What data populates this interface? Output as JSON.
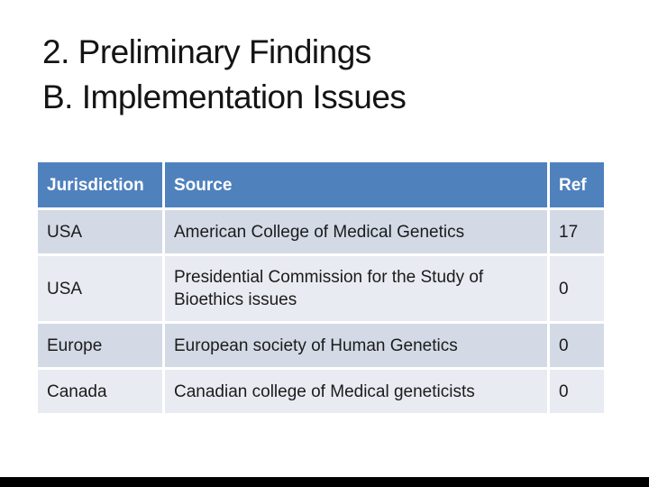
{
  "slide": {
    "title_line1": "2. Preliminary Findings",
    "title_line2": "B. Implementation Issues"
  },
  "table": {
    "headers": [
      "Jurisdiction",
      "Source",
      "Ref"
    ],
    "rows": [
      {
        "jurisdiction": "USA",
        "source": "American College of Medical Genetics",
        "ref": "17"
      },
      {
        "jurisdiction": "USA",
        "source": "Presidential Commission for the Study of Bioethics issues",
        "ref": "0"
      },
      {
        "jurisdiction": "Europe",
        "source": "European society of Human Genetics",
        "ref": "0"
      },
      {
        "jurisdiction": "Canada",
        "source": "Canadian college of Medical geneticists",
        "ref": "0"
      }
    ]
  },
  "colors": {
    "header_bg": "#4F81BD",
    "row_band_dark": "#D3DAE6",
    "row_band_light": "#E9EBF2",
    "header_text": "#FFFFFF",
    "body_text": "#1B1B1B",
    "title_text": "#141414",
    "footer_bar": "#000000"
  }
}
